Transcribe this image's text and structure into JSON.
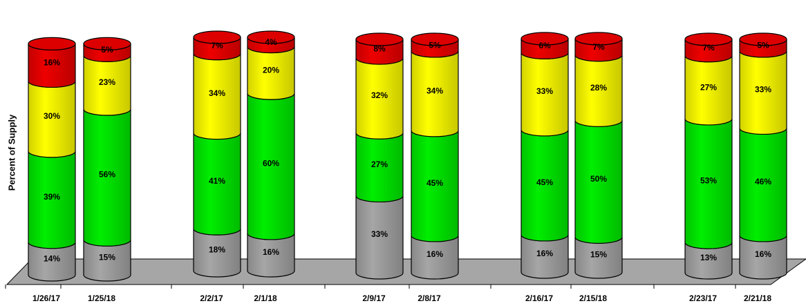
{
  "chart_data": {
    "type": "bar",
    "stacked": true,
    "style": "3d-cylinder",
    "ylabel": "Percent of Supply",
    "xlabel": "",
    "title": "",
    "ylim": [
      0,
      100
    ],
    "categories": [
      "1/26/17",
      "1/25/18",
      "2/2/17",
      "2/1/18",
      "2/9/17",
      "2/8/17",
      "2/16/17",
      "2/15/18",
      "2/23/17",
      "2/21/18"
    ],
    "series": [
      {
        "color": "#a6a6a6",
        "values": [
          14,
          15,
          18,
          16,
          33,
          16,
          16,
          15,
          13,
          16
        ]
      },
      {
        "color": "#00ee00",
        "values": [
          39,
          56,
          41,
          60,
          27,
          45,
          45,
          50,
          53,
          46
        ]
      },
      {
        "color": "#ffff00",
        "values": [
          30,
          23,
          34,
          20,
          32,
          34,
          33,
          28,
          27,
          33
        ]
      },
      {
        "color": "#ee0000",
        "values": [
          16,
          5,
          7,
          4,
          8,
          5,
          6,
          7,
          7,
          5
        ]
      }
    ],
    "data_labels": [
      [
        "14%",
        "39%",
        "30%",
        "16%"
      ],
      [
        "15%",
        "56%",
        "23%",
        "5%"
      ],
      [
        "18%",
        "41%",
        "34%",
        "7%"
      ],
      [
        "16%",
        "60%",
        "20%",
        "4%"
      ],
      [
        "33%",
        "27%",
        "32%",
        "8%"
      ],
      [
        "16%",
        "45%",
        "34%",
        "5%"
      ],
      [
        "16%",
        "45%",
        "33%",
        "6%"
      ],
      [
        "15%",
        "50%",
        "28%",
        "7%"
      ],
      [
        "13%",
        "53%",
        "27%",
        "7%"
      ],
      [
        "16%",
        "46%",
        "33%",
        "5%"
      ]
    ],
    "floor_color": "#a6a6a6",
    "grid": false,
    "legend": "none"
  }
}
